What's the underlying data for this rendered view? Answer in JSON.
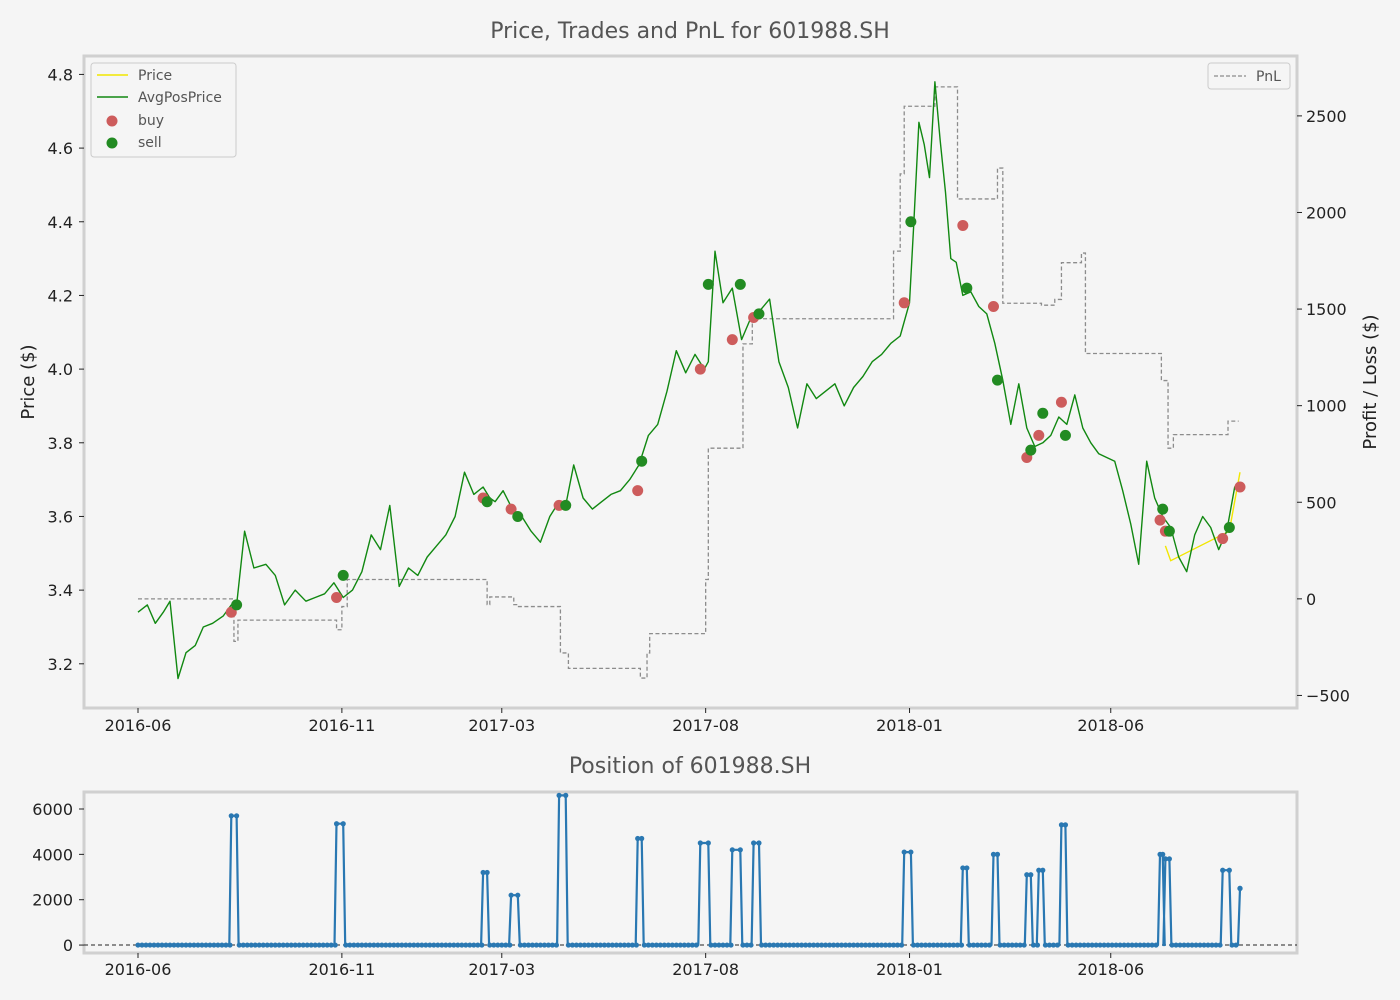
{
  "chart_data": [
    {
      "type": "line",
      "title": "Price, Trades and PnL for 601988.SH",
      "xlabel": "",
      "ylabel": "Price ($)",
      "y2label": "Profit / Loss ($)",
      "xticks": [
        "2016-06",
        "2016-11",
        "2017-03",
        "2017-08",
        "2018-01",
        "2018-06"
      ],
      "xlim": [
        "2016-06-01",
        "2018-09-30"
      ],
      "ylim": [
        3.08,
        4.85
      ],
      "yticks": [
        3.2,
        3.4,
        3.6,
        3.8,
        4.0,
        4.2,
        4.4,
        4.6,
        4.8
      ],
      "y2lim": [
        -565,
        2810
      ],
      "y2ticks": [
        -500,
        0,
        500,
        1000,
        1500,
        2000,
        2500
      ],
      "grid": false,
      "legend": {
        "placement": "top-left",
        "entries": [
          "Price",
          "AvgPosPrice",
          "buy",
          "sell"
        ]
      },
      "legend2": {
        "placement": "top-right",
        "entries": [
          "PnL"
        ]
      },
      "colors": {
        "price": "#f2e600",
        "avgpos": "#118811",
        "buy": "#cd5c5c",
        "sell": "#228b22",
        "pnl": "#8c8c8c"
      },
      "series": [
        {
          "name": "AvgPosPrice",
          "x": [
            "2016-06-01",
            "2016-06-08",
            "2016-06-14",
            "2016-06-20",
            "2016-06-25",
            "2016-07-01",
            "2016-07-07",
            "2016-07-14",
            "2016-07-20",
            "2016-07-27",
            "2016-08-04",
            "2016-08-10",
            "2016-08-14",
            "2016-08-20",
            "2016-08-27",
            "2016-09-05",
            "2016-09-12",
            "2016-09-19",
            "2016-09-27",
            "2016-10-05",
            "2016-10-12",
            "2016-10-19",
            "2016-10-26",
            "2016-11-02",
            "2016-11-09",
            "2016-11-16",
            "2016-11-23",
            "2016-11-30",
            "2016-12-07",
            "2016-12-14",
            "2016-12-21",
            "2016-12-28",
            "2017-01-04",
            "2017-01-11",
            "2017-01-18",
            "2017-01-25",
            "2017-02-01",
            "2017-02-08",
            "2017-02-15",
            "2017-02-20",
            "2017-02-24",
            "2017-03-02",
            "2017-03-09",
            "2017-03-16",
            "2017-03-23",
            "2017-03-30",
            "2017-04-06",
            "2017-04-13",
            "2017-04-18",
            "2017-04-24",
            "2017-05-01",
            "2017-05-08",
            "2017-05-15",
            "2017-05-22",
            "2017-05-29",
            "2017-06-05",
            "2017-06-12",
            "2017-06-19",
            "2017-06-26",
            "2017-07-03",
            "2017-07-10",
            "2017-07-17",
            "2017-07-24",
            "2017-07-31",
            "2017-08-03",
            "2017-08-08",
            "2017-08-14",
            "2017-08-21",
            "2017-08-28",
            "2017-09-04",
            "2017-09-11",
            "2017-09-18",
            "2017-09-25",
            "2017-10-02",
            "2017-10-09",
            "2017-10-16",
            "2017-10-23",
            "2017-10-30",
            "2017-11-06",
            "2017-11-13",
            "2017-11-20",
            "2017-11-27",
            "2017-12-04",
            "2017-12-11",
            "2017-12-18",
            "2017-12-25",
            "2018-01-01",
            "2018-01-04",
            "2018-01-08",
            "2018-01-12",
            "2018-01-16",
            "2018-01-20",
            "2018-01-24",
            "2018-01-28",
            "2018-02-01",
            "2018-02-05",
            "2018-02-10",
            "2018-02-16",
            "2018-02-22",
            "2018-02-28",
            "2018-03-06",
            "2018-03-12",
            "2018-03-18",
            "2018-03-24",
            "2018-03-30",
            "2018-04-05",
            "2018-04-11",
            "2018-04-17",
            "2018-04-23",
            "2018-04-29",
            "2018-05-05",
            "2018-05-11",
            "2018-05-17",
            "2018-05-23",
            "2018-05-29",
            "2018-06-04",
            "2018-06-10",
            "2018-06-16",
            "2018-06-22",
            "2018-06-28",
            "2018-07-04",
            "2018-07-10",
            "2018-07-16",
            "2018-07-22",
            "2018-07-28",
            "2018-08-03",
            "2018-08-09",
            "2018-08-15",
            "2018-08-21",
            "2018-08-27",
            "2018-09-02",
            "2018-09-06"
          ],
          "y": [
            3.34,
            3.36,
            3.31,
            3.34,
            3.37,
            3.16,
            3.23,
            3.25,
            3.3,
            3.31,
            3.33,
            3.36,
            3.36,
            3.56,
            3.46,
            3.47,
            3.44,
            3.36,
            3.4,
            3.37,
            3.38,
            3.39,
            3.42,
            3.38,
            3.4,
            3.45,
            3.55,
            3.51,
            3.63,
            3.41,
            3.46,
            3.44,
            3.49,
            3.52,
            3.55,
            3.6,
            3.72,
            3.66,
            3.68,
            3.65,
            3.64,
            3.67,
            3.62,
            3.6,
            3.56,
            3.53,
            3.6,
            3.64,
            3.63,
            3.74,
            3.65,
            3.62,
            3.64,
            3.66,
            3.67,
            3.7,
            3.74,
            3.82,
            3.85,
            3.94,
            4.05,
            3.99,
            4.04,
            4.0,
            4.02,
            4.32,
            4.18,
            4.22,
            4.08,
            4.14,
            4.16,
            4.19,
            4.02,
            3.95,
            3.84,
            3.96,
            3.92,
            3.94,
            3.96,
            3.9,
            3.95,
            3.98,
            4.02,
            4.04,
            4.07,
            4.09,
            4.18,
            4.38,
            4.67,
            4.61,
            4.52,
            4.78,
            4.62,
            4.48,
            4.3,
            4.29,
            4.2,
            4.21,
            4.17,
            4.15,
            4.07,
            3.97,
            3.85,
            3.96,
            3.84,
            3.79,
            3.8,
            3.82,
            3.87,
            3.85,
            3.93,
            3.84,
            3.8,
            3.77,
            3.76,
            3.75,
            3.67,
            3.58,
            3.47,
            3.75,
            3.65,
            3.6,
            3.57,
            3.49,
            3.45,
            3.55,
            3.6,
            3.57,
            3.51,
            3.56,
            3.68,
            3.68
          ]
        },
        {
          "name": "Price",
          "x": [
            "2018-07-12",
            "2018-07-16",
            "2018-08-29",
            "2018-09-06"
          ],
          "y": [
            3.52,
            3.48,
            3.56,
            3.72
          ]
        },
        {
          "name": "PnL",
          "axis": "right",
          "x": [
            "2016-06-01",
            "2016-08-10",
            "2016-08-12",
            "2016-08-15",
            "2016-08-20",
            "2016-10-10",
            "2016-10-28",
            "2016-11-01",
            "2016-11-05",
            "2016-11-15",
            "2017-02-15",
            "2017-02-18",
            "2017-02-20",
            "2017-03-01",
            "2017-03-10",
            "2017-03-13",
            "2017-04-10",
            "2017-04-14",
            "2017-04-20",
            "2017-06-11",
            "2017-06-13",
            "2017-06-18",
            "2017-06-20",
            "2017-07-28",
            "2017-08-01",
            "2017-08-03",
            "2017-08-25",
            "2017-08-29",
            "2017-09-05",
            "2017-09-15",
            "2017-09-20",
            "2017-12-15",
            "2017-12-20",
            "2017-12-25",
            "2017-12-28",
            "2018-01-12",
            "2018-01-20",
            "2018-02-06",
            "2018-02-10",
            "2018-02-12",
            "2018-03-05",
            "2018-03-08",
            "2018-03-12",
            "2018-03-20",
            "2018-04-10",
            "2018-04-20",
            "2018-04-25",
            "2018-05-01",
            "2018-05-10",
            "2018-05-13",
            "2018-05-18",
            "2018-07-06",
            "2018-07-09",
            "2018-07-14",
            "2018-07-18",
            "2018-08-25",
            "2018-08-28",
            "2018-09-05"
          ],
          "y": [
            0,
            0,
            -220,
            -110,
            -110,
            -110,
            -160,
            -40,
            100,
            100,
            100,
            -30,
            10,
            10,
            -30,
            -40,
            -40,
            -280,
            -360,
            -360,
            -410,
            -280,
            -180,
            -180,
            100,
            780,
            780,
            1320,
            1450,
            1450,
            1450,
            1450,
            1800,
            2200,
            2550,
            2550,
            2650,
            2070,
            2070,
            2070,
            2070,
            2230,
            1530,
            1530,
            1520,
            1550,
            1740,
            1740,
            1790,
            1270,
            1270,
            1270,
            1130,
            780,
            850,
            850,
            920,
            920
          ]
        }
      ],
      "buy": {
        "x": [
          "2016-08-10",
          "2016-10-28",
          "2017-02-15",
          "2017-03-08",
          "2017-04-13",
          "2017-06-11",
          "2017-07-28",
          "2017-08-21",
          "2017-09-06",
          "2017-12-28",
          "2018-02-10",
          "2018-03-05",
          "2018-03-30",
          "2018-04-08",
          "2018-04-25",
          "2018-07-08",
          "2018-07-12",
          "2018-08-24",
          "2018-09-06"
        ],
        "y": [
          3.34,
          3.38,
          3.65,
          3.62,
          3.63,
          3.67,
          4.0,
          4.08,
          4.14,
          4.18,
          4.39,
          4.17,
          3.76,
          3.82,
          3.91,
          3.59,
          3.56,
          3.54,
          3.68
        ]
      },
      "sell": {
        "x": [
          "2016-08-14",
          "2016-11-02",
          "2017-02-18",
          "2017-03-13",
          "2017-04-18",
          "2017-06-14",
          "2017-08-03",
          "2017-08-27",
          "2017-09-10",
          "2018-01-02",
          "2018-02-13",
          "2018-03-08",
          "2018-04-02",
          "2018-04-11",
          "2018-04-28",
          "2018-07-10",
          "2018-07-15",
          "2018-08-29"
        ],
        "y": [
          3.36,
          3.44,
          3.64,
          3.6,
          3.63,
          3.75,
          4.23,
          4.23,
          4.15,
          4.4,
          4.22,
          3.97,
          3.78,
          3.88,
          3.82,
          3.62,
          3.56,
          3.57
        ]
      }
    },
    {
      "type": "line",
      "title": "Position of 601988.SH",
      "xlabel": "",
      "ylabel": "",
      "xticks": [
        "2016-06",
        "2016-11",
        "2017-03",
        "2017-08",
        "2018-01",
        "2018-06"
      ],
      "xlim": [
        "2016-06-01",
        "2018-09-30"
      ],
      "ylim": [
        -350,
        6750
      ],
      "yticks": [
        0,
        2000,
        4000,
        6000
      ],
      "grid": false,
      "colors": {
        "position": "#2a78b2"
      },
      "positions": [
        {
          "start": "2016-08-10",
          "end": "2016-08-14",
          "value": 5700
        },
        {
          "start": "2016-10-28",
          "end": "2016-11-02",
          "value": 5350
        },
        {
          "start": "2017-02-15",
          "end": "2017-02-18",
          "value": 3200
        },
        {
          "start": "2017-03-08",
          "end": "2017-03-13",
          "value": 2200
        },
        {
          "start": "2017-04-13",
          "end": "2017-04-18",
          "value": 6600
        },
        {
          "start": "2017-06-11",
          "end": "2017-06-14",
          "value": 4700
        },
        {
          "start": "2017-07-28",
          "end": "2017-08-03",
          "value": 4500
        },
        {
          "start": "2017-08-21",
          "end": "2017-08-27",
          "value": 4200
        },
        {
          "start": "2017-09-06",
          "end": "2017-09-10",
          "value": 4500
        },
        {
          "start": "2017-12-28",
          "end": "2018-01-02",
          "value": 4100
        },
        {
          "start": "2018-02-10",
          "end": "2018-02-13",
          "value": 3400
        },
        {
          "start": "2018-03-05",
          "end": "2018-03-08",
          "value": 4000
        },
        {
          "start": "2018-03-30",
          "end": "2018-04-02",
          "value": 3100
        },
        {
          "start": "2018-04-08",
          "end": "2018-04-11",
          "value": 3300
        },
        {
          "start": "2018-04-25",
          "end": "2018-04-28",
          "value": 5300
        },
        {
          "start": "2018-07-08",
          "end": "2018-07-10",
          "value": 4000
        },
        {
          "start": "2018-07-12",
          "end": "2018-07-15",
          "value": 3800
        },
        {
          "start": "2018-08-24",
          "end": "2018-08-29",
          "value": 3300
        },
        {
          "start": "2018-09-06",
          "end": "2018-09-06",
          "value": 2500
        }
      ]
    }
  ]
}
